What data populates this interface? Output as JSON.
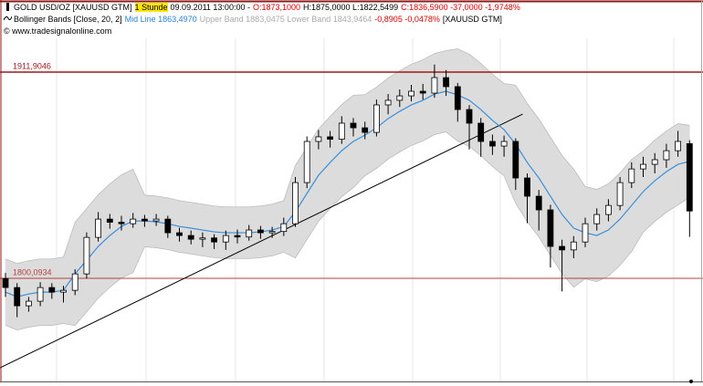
{
  "header": {
    "line1": [
      "GOLD USD/OZ [XAUUSD GTM]",
      "1 Stunde",
      "09.09.2011 13:00:00 -",
      "O:1873,1000",
      "H:1875,0000 L:1822,5499",
      "C:1836,5900 -37,0000 -1,9748%"
    ],
    "line2": [
      "Bollinger Bands [Close, 20, 2]",
      "Mid Line 1863,4970",
      "Upper Band 1883,0475 Lower Band 1843,9464",
      "-0,8905 -0,0478%",
      "[XAUUSD GTM]"
    ],
    "line3": "© www.tradesignalonline.com"
  },
  "chart_data": {
    "type": "candlestick",
    "ylim": [
      1744.2,
      1930.2
    ],
    "up_color": "#ffffff",
    "down_color": "#000000",
    "wick_color": "#000000",
    "open": [
      1800.0,
      1795.1,
      1785.2,
      1787.7,
      1795.1,
      1792.6,
      1793.6,
      1802.5,
      1822.3,
      1832.2,
      1830.5,
      1829.7,
      1832.2,
      1831.2,
      1832.2,
      1824.8,
      1823.3,
      1821.3,
      1822.0,
      1819.8,
      1823.3,
      1822.5,
      1826.3,
      1824.8,
      1825.5,
      1829.7,
      1852.0,
      1874.3,
      1876.8,
      1875.5,
      1884.2,
      1881.7,
      1879.2,
      1894.1,
      1896.6,
      1899.0,
      1901.5,
      1900.5,
      1908.9,
      1904.0,
      1891.6,
      1884.2,
      1874.3,
      1871.8,
      1874.3,
      1854.5,
      1844.6,
      1837.2,
      1817.4,
      1815.5,
      1819.8,
      1829.7,
      1834.7,
      1839.6,
      1852.0,
      1859.4,
      1861.9,
      1864.4,
      1869.3,
      1873.1
    ],
    "high": [
      1803.0,
      1797.5,
      1790.0,
      1798.0,
      1797.5,
      1796.0,
      1805.0,
      1825.0,
      1836.0,
      1835.0,
      1834.0,
      1835.5,
      1834.5,
      1835.0,
      1834.0,
      1827.5,
      1826.0,
      1825.0,
      1824.0,
      1826.0,
      1826.5,
      1829.0,
      1828.5,
      1828.0,
      1833.0,
      1855.0,
      1877.0,
      1880.5,
      1880.0,
      1888.0,
      1887.0,
      1885.0,
      1897.0,
      1900.0,
      1902.5,
      1905.0,
      1905.5,
      1916.0,
      1913.0,
      1906.0,
      1894.0,
      1887.0,
      1878.0,
      1877.5,
      1876.0,
      1857.0,
      1848.0,
      1840.0,
      1821.0,
      1823.0,
      1833.0,
      1838.0,
      1843.0,
      1855.0,
      1863.0,
      1866.0,
      1868.0,
      1873.0,
      1880.0,
      1875.0
    ],
    "low": [
      1790.0,
      1779.0,
      1782.0,
      1785.0,
      1789.0,
      1787.0,
      1791.0,
      1800.0,
      1820.0,
      1827.0,
      1826.0,
      1827.5,
      1828.0,
      1828.5,
      1822.0,
      1820.0,
      1818.5,
      1817.0,
      1816.0,
      1815.5,
      1819.0,
      1820.5,
      1821.5,
      1822.0,
      1823.0,
      1828.0,
      1849.0,
      1870.0,
      1871.0,
      1873.0,
      1877.0,
      1875.5,
      1877.0,
      1889.0,
      1893.0,
      1896.0,
      1897.0,
      1898.0,
      1899.0,
      1885.0,
      1870.0,
      1866.0,
      1867.0,
      1866.0,
      1848.0,
      1830.0,
      1826.0,
      1806.0,
      1793.0,
      1811.0,
      1817.0,
      1826.0,
      1831.0,
      1837.0,
      1849.0,
      1855.0,
      1857.0,
      1860.0,
      1866.0,
      1822.5499
    ],
    "close": [
      1795.1,
      1785.2,
      1787.7,
      1795.1,
      1792.6,
      1793.6,
      1802.5,
      1822.3,
      1832.2,
      1830.5,
      1829.7,
      1832.2,
      1831.2,
      1832.2,
      1824.8,
      1823.3,
      1821.3,
      1822.0,
      1819.8,
      1823.3,
      1822.5,
      1826.3,
      1824.8,
      1825.5,
      1829.7,
      1852.0,
      1874.3,
      1876.8,
      1875.5,
      1884.2,
      1881.7,
      1879.2,
      1894.1,
      1896.6,
      1899.0,
      1901.5,
      1900.5,
      1908.9,
      1904.0,
      1891.6,
      1884.2,
      1874.3,
      1871.8,
      1874.3,
      1854.5,
      1844.6,
      1837.2,
      1817.4,
      1815.5,
      1819.8,
      1829.7,
      1834.7,
      1839.6,
      1852.0,
      1859.4,
      1861.9,
      1864.4,
      1869.3,
      1874.3,
      1836.59
    ],
    "bollinger": {
      "band_color": "#dcdcdc",
      "edge_color": "#bdbdbd",
      "mid_color": "#3a8fd9",
      "mid": [
        1792.6,
        1790.1,
        1791.6,
        1792.6,
        1792.6,
        1793.6,
        1802.5,
        1809.9,
        1817.4,
        1823.3,
        1828.2,
        1831.2,
        1831.2,
        1830.7,
        1829.7,
        1828.2,
        1827.3,
        1826.3,
        1825.3,
        1824.8,
        1824.8,
        1824.8,
        1825.3,
        1826.3,
        1828.2,
        1836.2,
        1846.1,
        1856.0,
        1862.9,
        1869.3,
        1874.3,
        1877.7,
        1881.7,
        1886.7,
        1890.6,
        1894.1,
        1896.6,
        1900.0,
        1901.5,
        1899.5,
        1896.6,
        1891.6,
        1885.7,
        1880.7,
        1872.8,
        1862.9,
        1854.5,
        1844.6,
        1834.7,
        1827.3,
        1824.8,
        1823.3,
        1826.3,
        1832.2,
        1839.6,
        1847.1,
        1853.0,
        1857.9,
        1861.9,
        1863.497
      ],
      "upper": [
        1810.6,
        1808.1,
        1809.6,
        1810.6,
        1810.6,
        1811.6,
        1830.5,
        1837.9,
        1845.4,
        1851.3,
        1856.2,
        1859.2,
        1845.2,
        1844.7,
        1843.7,
        1842.2,
        1841.3,
        1840.3,
        1839.3,
        1838.8,
        1838.8,
        1838.8,
        1839.3,
        1840.3,
        1842.2,
        1861.2,
        1871.1,
        1881.0,
        1887.9,
        1894.3,
        1899.3,
        1899.7,
        1903.7,
        1908.7,
        1912.6,
        1916.1,
        1918.6,
        1922.0,
        1923.5,
        1924.5,
        1921.6,
        1916.6,
        1910.7,
        1905.7,
        1904.8,
        1894.9,
        1886.5,
        1876.6,
        1866.7,
        1859.3,
        1849.8,
        1848.3,
        1851.3,
        1857.2,
        1864.6,
        1869.1,
        1875.0,
        1879.9,
        1883.9,
        1883.0475
      ],
      "lower": [
        1774.6,
        1772.1,
        1773.6,
        1774.6,
        1774.6,
        1775.6,
        1774.5,
        1781.9,
        1789.4,
        1795.3,
        1800.2,
        1803.2,
        1817.2,
        1816.7,
        1815.7,
        1814.2,
        1813.3,
        1812.3,
        1811.3,
        1810.8,
        1810.8,
        1810.8,
        1811.3,
        1812.3,
        1814.2,
        1811.2,
        1821.1,
        1831.0,
        1837.9,
        1844.3,
        1849.3,
        1855.7,
        1859.7,
        1864.7,
        1868.6,
        1872.1,
        1874.6,
        1878.0,
        1879.5,
        1874.5,
        1871.6,
        1866.6,
        1860.7,
        1855.7,
        1840.8,
        1830.9,
        1822.5,
        1812.6,
        1802.7,
        1795.3,
        1799.8,
        1798.3,
        1801.3,
        1807.2,
        1814.6,
        1825.1,
        1831.0,
        1835.9,
        1839.9,
        1843.9464
      ]
    },
    "hlines": [
      {
        "value": 1911.9046,
        "label": "1911,9046",
        "color": "#a01818"
      },
      {
        "value": 1800.0934,
        "label": "1800,0934",
        "color": "#b84040"
      }
    ],
    "trendline": {
      "x": [
        -0.5,
        44.6
      ],
      "y": [
        1751.5,
        1889.1
      ],
      "color": "#000000"
    }
  }
}
